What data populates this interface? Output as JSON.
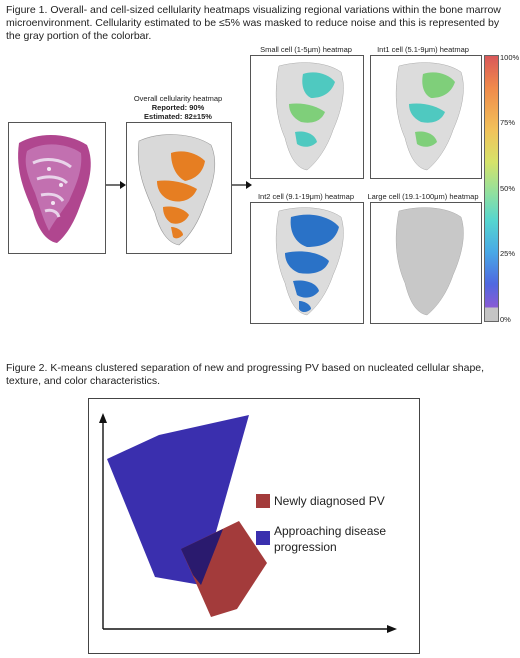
{
  "figure1": {
    "caption": "Figure 1. Overall- and cell-sized cellularity heatmaps visualizing regional variations within the bone marrow microenvironment. Cellularity estimated to be ≤5% was masked to reduce noise and this is represented by the gray portion of the colorbar.",
    "overall_title": "Overall cellularity heatmap",
    "reported": "Reported: 90%",
    "estimated": "Estimated: 82±15%",
    "heatmaps": [
      {
        "title": "Small cell (1-5μm) heatmap"
      },
      {
        "title": "Int1 cell (5.1-9μm) heatmap"
      },
      {
        "title": "Int2 cell (9.1-19μm) heatmap"
      },
      {
        "title": "Large cell (19.1-100μm) heatmap"
      }
    ],
    "colorbar_ticks": [
      "100%",
      "75%",
      "50%",
      "25%",
      "0%"
    ],
    "colors": {
      "overall": "#e67e22",
      "small": "#4fc9c0",
      "int1": "#7fcf7a",
      "int2": "#2a72c7",
      "large": "#c8c8c8",
      "he": "#b0468f"
    }
  },
  "figure2": {
    "caption": "Figure 2. K-means clustered separation of new and progressing PV based on nucleated cellular shape, texture, and color characteristics.",
    "legend": [
      {
        "label": "Newly diagnosed PV",
        "color": "#a33b3b"
      },
      {
        "label": "Approaching disease",
        "label2": "progression",
        "color": "#3a2fae"
      }
    ]
  }
}
